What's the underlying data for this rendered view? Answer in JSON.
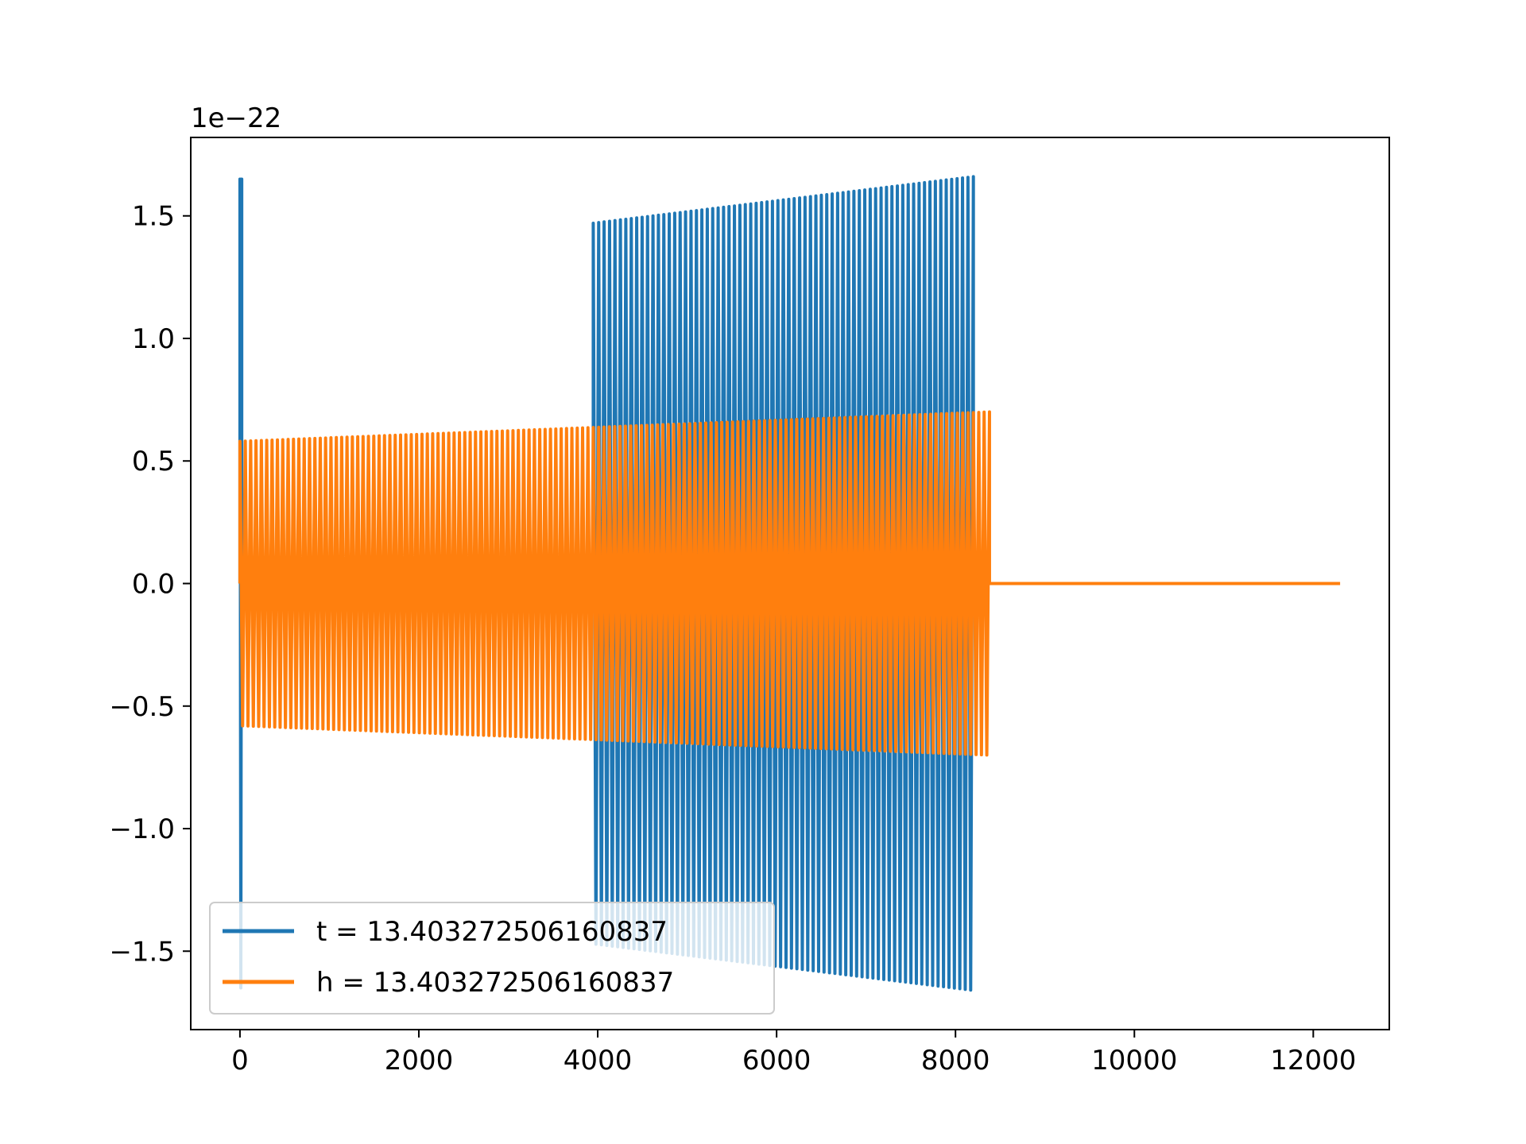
{
  "chart_data": {
    "type": "line",
    "title": "",
    "xlabel": "",
    "ylabel": "",
    "y_offset_label": "1e−22",
    "xlim": [
      -550,
      12850
    ],
    "ylim": [
      -1.82,
      1.82
    ],
    "x_ticks": [
      0,
      2000,
      4000,
      6000,
      8000,
      10000,
      12000
    ],
    "x_tick_labels": [
      "0",
      "2000",
      "4000",
      "6000",
      "8000",
      "10000",
      "12000"
    ],
    "y_ticks": [
      -1.5,
      -1.0,
      -0.5,
      0.0,
      0.5,
      1.0,
      1.5
    ],
    "y_tick_labels": [
      "−1.5",
      "−1.0",
      "−0.5",
      "0.0",
      "0.5",
      "1.0",
      "1.5"
    ],
    "grid": false,
    "legend_position": "lower-left",
    "series": [
      {
        "name": "t = 13.403272506160837",
        "color": "#1f77b4",
        "segments": [
          {
            "x_start": 0,
            "x_end": 20,
            "amp_start": 1.65,
            "amp_end": 1.65,
            "cycles": 1
          },
          {
            "x_start": 3950,
            "x_end": 8200,
            "amp_start": 1.47,
            "amp_end": 1.66,
            "cycles": 70
          }
        ]
      },
      {
        "name": "h = 13.403272506160837",
        "color": "#ff7f0e",
        "segments": [
          {
            "x_start": 0,
            "x_end": 8380,
            "amp_start": 0.58,
            "amp_end": 0.7,
            "cycles": 140
          },
          {
            "x_start": 8380,
            "x_end": 12300,
            "amp_start": 0,
            "amp_end": 0,
            "cycles": 0
          }
        ]
      }
    ]
  }
}
